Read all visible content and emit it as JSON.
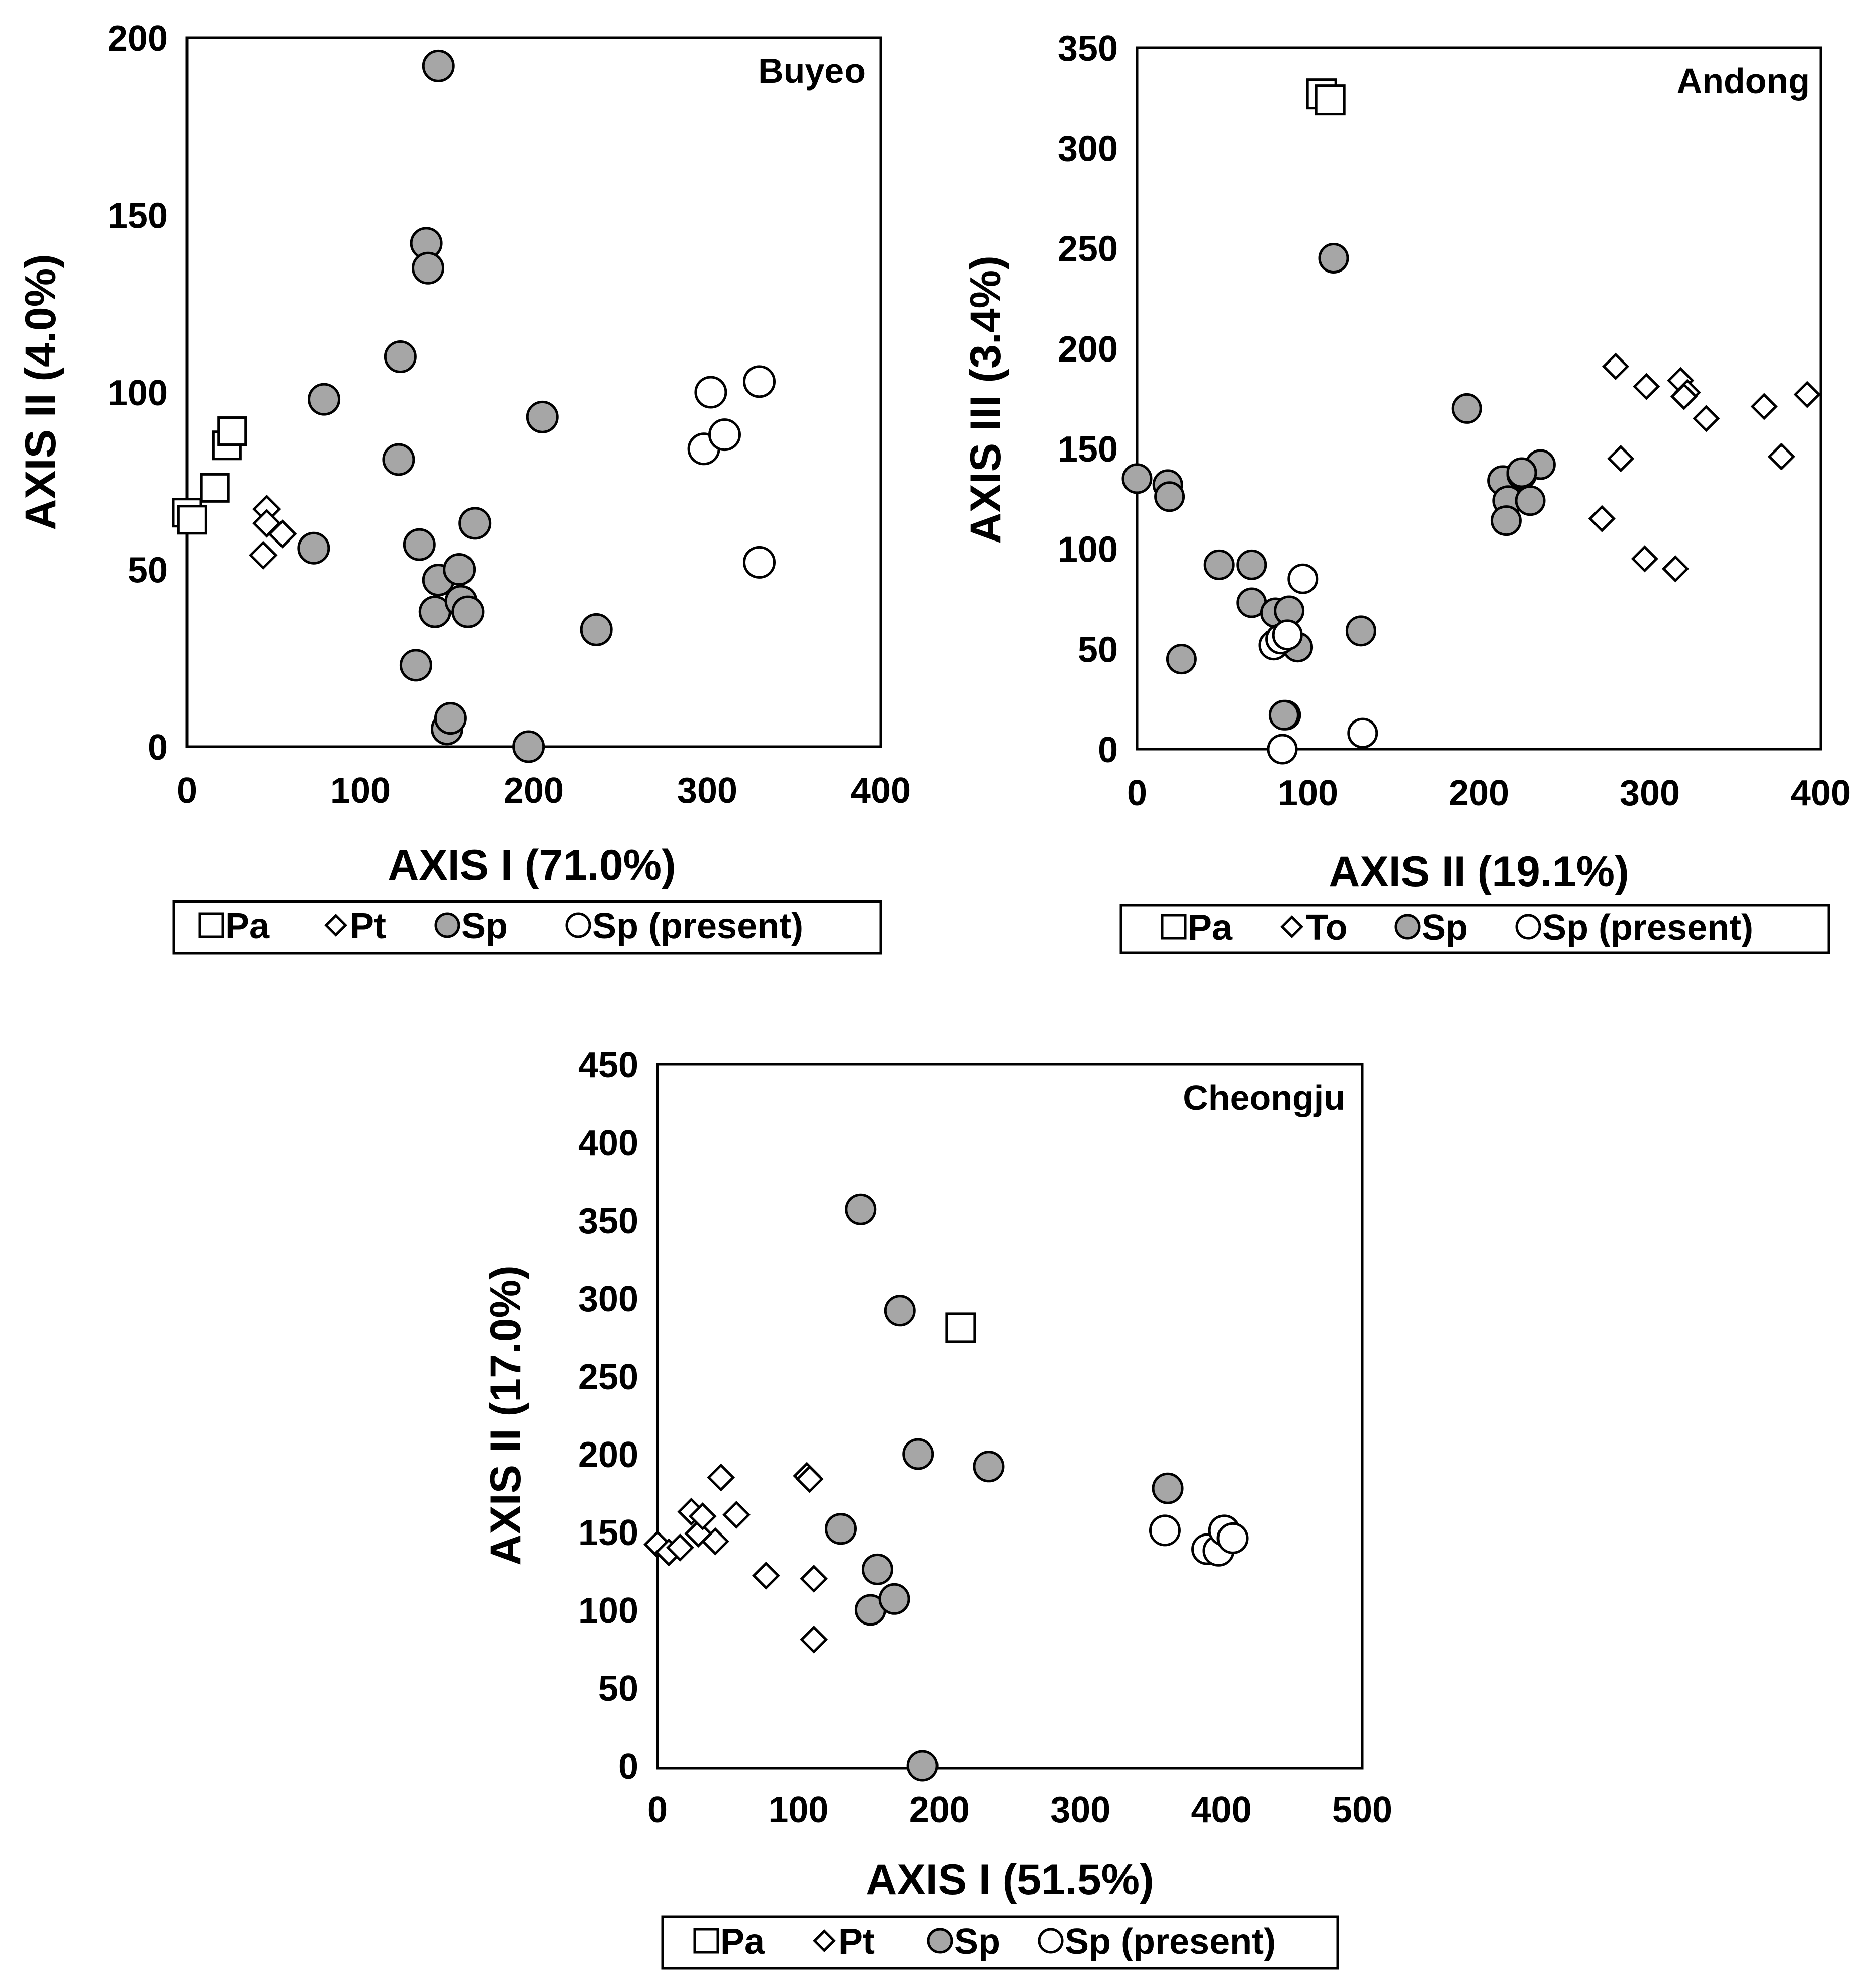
{
  "chart_data": [
    {
      "type": "scatter",
      "title": "Buyeo",
      "xlabel": "AXIS I (71.0%)",
      "ylabel": "AXIS II (4.0%)",
      "xlim": [
        0,
        400
      ],
      "ylim": [
        0,
        200
      ],
      "xticks": [
        "0",
        "100",
        "200",
        "300",
        "400"
      ],
      "yticks": [
        "0",
        "50",
        "100",
        "150",
        "200"
      ],
      "grid": false,
      "legend_position": "bottom",
      "series": [
        {
          "name": "Pa",
          "marker": "square-open",
          "x": [
            0,
            3,
            16,
            23,
            26
          ],
          "y": [
            66,
            64,
            73,
            85,
            89
          ]
        },
        {
          "name": "Pt",
          "marker": "diamond-open",
          "x": [
            46,
            46,
            55,
            44
          ],
          "y": [
            67,
            63,
            60,
            54
          ]
        },
        {
          "name": "Sp",
          "marker": "circle-gray",
          "x": [
            145,
            138,
            139,
            123,
            79,
            122,
            73,
            134,
            143,
            166,
            145,
            157,
            143,
            158,
            162,
            132,
            150,
            152,
            205,
            236,
            197
          ],
          "y": [
            192,
            142,
            135,
            110,
            98,
            81,
            56,
            57,
            38,
            63,
            47,
            50,
            38,
            41,
            38,
            23,
            5,
            8,
            93,
            33,
            0
          ]
        },
        {
          "name": "Sp (present)",
          "marker": "circle-open",
          "x": [
            302,
            330,
            298,
            310,
            330
          ],
          "y": [
            100,
            103,
            84,
            88,
            52
          ]
        }
      ]
    },
    {
      "type": "scatter",
      "title": "Andong",
      "xlabel": "AXIS II (19.1%)",
      "ylabel": "AXIS III (3.4%)",
      "xlim": [
        0,
        400
      ],
      "ylim": [
        0,
        350
      ],
      "xticks": [
        "0",
        "100",
        "200",
        "300",
        "400"
      ],
      "yticks": [
        "0",
        "50",
        "100",
        "150",
        "200",
        "250",
        "300",
        "350"
      ],
      "grid": false,
      "legend_position": "bottom",
      "series": [
        {
          "name": "Pa",
          "marker": "square-open",
          "x": [
            108,
            113
          ],
          "y": [
            327,
            324
          ]
        },
        {
          "name": "To",
          "marker": "diamond-open",
          "x": [
            280,
            298,
            318,
            322,
            320,
            333,
            367,
            392,
            377,
            283,
            272,
            297,
            315
          ],
          "y": [
            191,
            181,
            184,
            178,
            176,
            165,
            171,
            177,
            146,
            145,
            115,
            95,
            90
          ]
        },
        {
          "name": "Sp",
          "marker": "circle-gray",
          "x": [
            115,
            193,
            0,
            18,
            19,
            48,
            67,
            67,
            81,
            89,
            26,
            87,
            94,
            131,
            86,
            214,
            217,
            225,
            230,
            236,
            216,
            225
          ],
          "y": [
            245,
            170,
            135,
            132,
            126,
            92,
            92,
            73,
            68,
            69,
            45,
            17,
            51,
            59,
            17,
            134,
            124,
            137,
            124,
            142,
            114,
            138
          ]
        },
        {
          "name": "Sp (present)",
          "marker": "circle-open",
          "x": [
            97,
            80,
            84,
            88,
            132,
            85
          ],
          "y": [
            85,
            52,
            55,
            57,
            8,
            0
          ]
        }
      ]
    },
    {
      "type": "scatter",
      "title": "Cheongju",
      "xlabel": "AXIS I (51.5%)",
      "ylabel": "AXIS II (17.0%)",
      "xlim": [
        0,
        500
      ],
      "ylim": [
        0,
        450
      ],
      "xticks": [
        "0",
        "100",
        "200",
        "300",
        "400",
        "500"
      ],
      "yticks": [
        "0",
        "50",
        "100",
        "150",
        "200",
        "250",
        "300",
        "350",
        "400",
        "450"
      ],
      "grid": false,
      "legend_position": "bottom",
      "series": [
        {
          "name": "Pa",
          "marker": "square-open",
          "x": [
            215
          ],
          "y": [
            281
          ]
        },
        {
          "name": "Pt",
          "marker": "diamond-open",
          "x": [
            0,
            8,
            16,
            24,
            29,
            32,
            41,
            45,
            56,
            77,
            106,
            108,
            111,
            111
          ],
          "y": [
            142,
            137,
            140,
            163,
            149,
            160,
            144,
            185,
            161,
            122,
            186,
            184,
            120,
            81
          ]
        },
        {
          "name": "Sp",
          "marker": "circle-gray",
          "x": [
            144,
            172,
            185,
            235,
            130,
            156,
            151,
            168,
            362,
            188
          ],
          "y": [
            357,
            292,
            200,
            192,
            152,
            126,
            100,
            107,
            178,
            0
          ]
        },
        {
          "name": "Sp (present)",
          "marker": "circle-open",
          "x": [
            360,
            390,
            398,
            402,
            408
          ],
          "y": [
            151,
            139,
            138,
            151,
            146
          ]
        }
      ]
    }
  ]
}
